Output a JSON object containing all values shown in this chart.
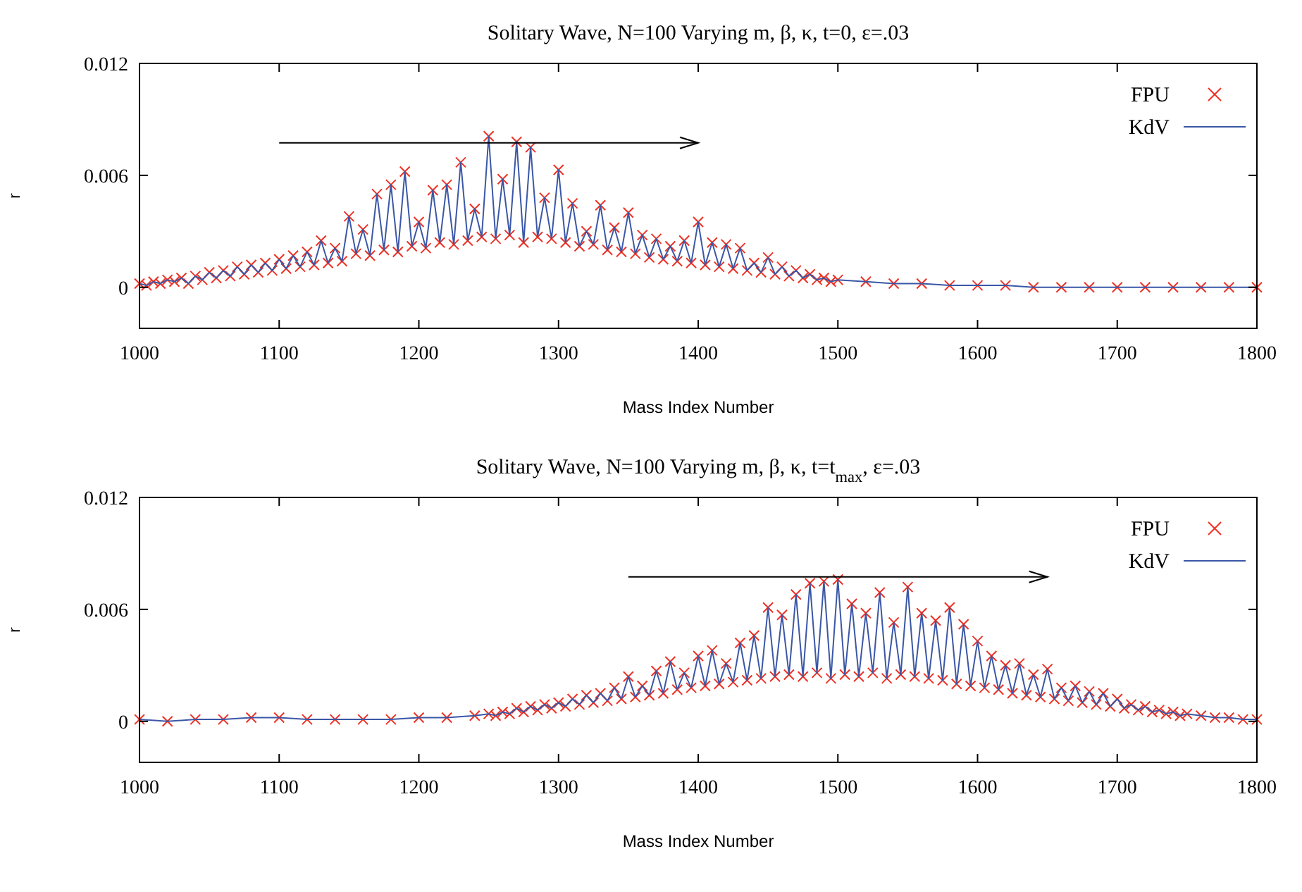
{
  "chart_data": [
    {
      "type": "line",
      "title": "Solitary Wave, N=100 Varying m, β, κ, t=0, ε=.03",
      "xlabel": "Mass Index Number",
      "ylabel": "r",
      "xlim": [
        1000,
        1800
      ],
      "xticks": [
        1000,
        1100,
        1200,
        1300,
        1400,
        1500,
        1600,
        1700,
        1800
      ],
      "ylim": [
        -0.0022,
        0.012
      ],
      "yticks": [
        0,
        0.006,
        0.012
      ],
      "grid": false,
      "legend": "top right",
      "x": [
        1000,
        1005,
        1010,
        1015,
        1020,
        1025,
        1030,
        1035,
        1040,
        1045,
        1050,
        1055,
        1060,
        1065,
        1070,
        1075,
        1080,
        1085,
        1090,
        1095,
        1100,
        1105,
        1110,
        1115,
        1120,
        1125,
        1130,
        1135,
        1140,
        1145,
        1150,
        1155,
        1160,
        1165,
        1170,
        1175,
        1180,
        1185,
        1190,
        1195,
        1200,
        1205,
        1210,
        1215,
        1220,
        1225,
        1230,
        1235,
        1240,
        1245,
        1250,
        1255,
        1260,
        1265,
        1270,
        1275,
        1280,
        1285,
        1290,
        1295,
        1300,
        1305,
        1310,
        1315,
        1320,
        1325,
        1330,
        1335,
        1340,
        1345,
        1350,
        1355,
        1360,
        1365,
        1370,
        1375,
        1380,
        1385,
        1390,
        1395,
        1400,
        1405,
        1410,
        1415,
        1420,
        1425,
        1430,
        1435,
        1440,
        1445,
        1450,
        1455,
        1460,
        1465,
        1470,
        1475,
        1480,
        1485,
        1490,
        1495,
        1500,
        1520,
        1540,
        1560,
        1580,
        1600,
        1620,
        1640,
        1660,
        1680,
        1700,
        1720,
        1740,
        1760,
        1780,
        1800
      ],
      "series": [
        {
          "name": "FPU",
          "type": "scatter",
          "marker": "cross",
          "color": "#ee3124",
          "values": [
            0.0002,
            0.0001,
            0.0003,
            0.0002,
            0.0004,
            0.0003,
            0.0005,
            0.0002,
            0.0006,
            0.0004,
            0.0008,
            0.0005,
            0.0009,
            0.0006,
            0.0011,
            0.0007,
            0.0012,
            0.0008,
            0.0013,
            0.0009,
            0.0015,
            0.001,
            0.0017,
            0.0011,
            0.0019,
            0.0012,
            0.0025,
            0.0013,
            0.0021,
            0.0014,
            0.0038,
            0.0018,
            0.0031,
            0.0017,
            0.005,
            0.002,
            0.0055,
            0.0019,
            0.0062,
            0.0022,
            0.0035,
            0.0021,
            0.0052,
            0.0024,
            0.0055,
            0.0023,
            0.0067,
            0.0025,
            0.0042,
            0.0027,
            0.0081,
            0.0026,
            0.0058,
            0.0028,
            0.0078,
            0.0024,
            0.0075,
            0.0027,
            0.0048,
            0.0026,
            0.0063,
            0.0024,
            0.0045,
            0.0022,
            0.003,
            0.0023,
            0.0044,
            0.002,
            0.0032,
            0.0019,
            0.004,
            0.0018,
            0.0028,
            0.0016,
            0.0026,
            0.0015,
            0.0022,
            0.0014,
            0.0025,
            0.0013,
            0.0035,
            0.0012,
            0.0024,
            0.0011,
            0.0023,
            0.001,
            0.0021,
            0.0009,
            0.0013,
            0.0008,
            0.0016,
            0.0007,
            0.0011,
            0.0006,
            0.0009,
            0.0005,
            0.0007,
            0.0004,
            0.0005,
            0.0003,
            0.0004,
            0.0003,
            0.0002,
            0.0002,
            0.0001,
            0.0001,
            0.0001,
            0,
            0,
            0,
            0,
            0,
            0,
            0,
            0,
            0
          ]
        },
        {
          "name": "KdV",
          "line_style": "solid",
          "color": "#3b57a6",
          "values": [
            0.0002,
            0.0001,
            0.0003,
            0.0002,
            0.0004,
            0.0003,
            0.0005,
            0.0002,
            0.0006,
            0.0004,
            0.0008,
            0.0005,
            0.0009,
            0.0006,
            0.0011,
            0.0007,
            0.0012,
            0.0008,
            0.0013,
            0.0009,
            0.0015,
            0.001,
            0.0017,
            0.0011,
            0.0019,
            0.0012,
            0.0025,
            0.0013,
            0.0021,
            0.0014,
            0.0038,
            0.0018,
            0.0031,
            0.0017,
            0.005,
            0.002,
            0.0055,
            0.0019,
            0.0062,
            0.0022,
            0.0035,
            0.0021,
            0.0052,
            0.0024,
            0.0055,
            0.0023,
            0.0067,
            0.0025,
            0.0042,
            0.0027,
            0.0081,
            0.0026,
            0.0058,
            0.0028,
            0.0078,
            0.0024,
            0.0075,
            0.0027,
            0.0048,
            0.0026,
            0.0063,
            0.0024,
            0.0045,
            0.0022,
            0.003,
            0.0023,
            0.0044,
            0.002,
            0.0032,
            0.0019,
            0.004,
            0.0018,
            0.0028,
            0.0016,
            0.0026,
            0.0015,
            0.0022,
            0.0014,
            0.0025,
            0.0013,
            0.0035,
            0.0012,
            0.0024,
            0.0011,
            0.0023,
            0.001,
            0.0021,
            0.0009,
            0.0013,
            0.0008,
            0.0016,
            0.0007,
            0.0011,
            0.0006,
            0.0009,
            0.0005,
            0.0007,
            0.0004,
            0.0005,
            0.0003,
            0.0004,
            0.0003,
            0.0002,
            0.0002,
            0.0001,
            0.0001,
            0.0001,
            0,
            0,
            0,
            0,
            0,
            0,
            0,
            0,
            0
          ]
        }
      ]
    },
    {
      "type": "line",
      "title": "Solitary Wave, N=100 Varying m, β, κ, t=t$_{max}$, ε=.03",
      "xlabel": "Mass Index Number",
      "ylabel": "r",
      "xlim": [
        1000,
        1800
      ],
      "xticks": [
        1000,
        1100,
        1200,
        1300,
        1400,
        1500,
        1600,
        1700,
        1800
      ],
      "ylim": [
        -0.0022,
        0.012
      ],
      "yticks": [
        0,
        0.006,
        0.012
      ],
      "grid": false,
      "legend": "top right",
      "x": [
        1000,
        1020,
        1040,
        1060,
        1080,
        1100,
        1120,
        1140,
        1160,
        1180,
        1200,
        1220,
        1240,
        1250,
        1255,
        1260,
        1265,
        1270,
        1275,
        1280,
        1285,
        1290,
        1295,
        1300,
        1305,
        1310,
        1315,
        1320,
        1325,
        1330,
        1335,
        1340,
        1345,
        1350,
        1355,
        1360,
        1365,
        1370,
        1375,
        1380,
        1385,
        1390,
        1395,
        1400,
        1405,
        1410,
        1415,
        1420,
        1425,
        1430,
        1435,
        1440,
        1445,
        1450,
        1455,
        1460,
        1465,
        1470,
        1475,
        1480,
        1485,
        1490,
        1495,
        1500,
        1505,
        1510,
        1515,
        1520,
        1525,
        1530,
        1535,
        1540,
        1545,
        1550,
        1555,
        1560,
        1565,
        1570,
        1575,
        1580,
        1585,
        1590,
        1595,
        1600,
        1605,
        1610,
        1615,
        1620,
        1625,
        1630,
        1635,
        1640,
        1645,
        1650,
        1655,
        1660,
        1665,
        1670,
        1675,
        1680,
        1685,
        1690,
        1695,
        1700,
        1705,
        1710,
        1715,
        1720,
        1725,
        1730,
        1735,
        1740,
        1745,
        1750,
        1760,
        1770,
        1780,
        1790,
        1800
      ],
      "series": [
        {
          "name": "FPU",
          "type": "scatter",
          "marker": "cross",
          "color": "#ee3124",
          "values": [
            0.0001,
            0,
            0.0001,
            0.0001,
            0.0002,
            0.0002,
            0.0001,
            0.0001,
            0.0001,
            0.0001,
            0.0002,
            0.0002,
            0.0003,
            0.0004,
            0.0003,
            0.0005,
            0.0004,
            0.0007,
            0.0005,
            0.0008,
            0.0006,
            0.0009,
            0.0007,
            0.001,
            0.0008,
            0.0012,
            0.0009,
            0.0014,
            0.001,
            0.0015,
            0.0011,
            0.0018,
            0.0012,
            0.0024,
            0.0013,
            0.0019,
            0.0014,
            0.0027,
            0.0015,
            0.0032,
            0.0017,
            0.0026,
            0.0018,
            0.0035,
            0.0019,
            0.0038,
            0.002,
            0.0031,
            0.0021,
            0.0042,
            0.0022,
            0.0046,
            0.0023,
            0.0061,
            0.0024,
            0.0057,
            0.0025,
            0.0068,
            0.0024,
            0.0074,
            0.0026,
            0.0075,
            0.0023,
            0.0076,
            0.0025,
            0.0063,
            0.0024,
            0.0058,
            0.0026,
            0.0069,
            0.0023,
            0.0053,
            0.0025,
            0.0072,
            0.0024,
            0.0058,
            0.0023,
            0.0054,
            0.0022,
            0.0061,
            0.002,
            0.0052,
            0.0019,
            0.0043,
            0.0018,
            0.0035,
            0.0017,
            0.003,
            0.0015,
            0.0031,
            0.0014,
            0.0025,
            0.0013,
            0.0028,
            0.0012,
            0.0018,
            0.0011,
            0.0019,
            0.001,
            0.0016,
            0.0009,
            0.0015,
            0.0008,
            0.0012,
            0.0007,
            0.0009,
            0.0006,
            0.0008,
            0.0005,
            0.0006,
            0.0004,
            0.0005,
            0.0003,
            0.0004,
            0.0003,
            0.0002,
            0.0002,
            0.0001,
            0.0001
          ]
        },
        {
          "name": "KdV",
          "line_style": "solid",
          "color": "#3b57a6",
          "values": [
            0.0001,
            0,
            0.0001,
            0.0001,
            0.0002,
            0.0002,
            0.0001,
            0.0001,
            0.0001,
            0.0001,
            0.0002,
            0.0002,
            0.0003,
            0.0004,
            0.0003,
            0.0005,
            0.0004,
            0.0007,
            0.0005,
            0.0008,
            0.0006,
            0.0009,
            0.0007,
            0.001,
            0.0008,
            0.0012,
            0.0009,
            0.0014,
            0.001,
            0.0015,
            0.0011,
            0.0018,
            0.0012,
            0.0024,
            0.0013,
            0.0019,
            0.0014,
            0.0027,
            0.0015,
            0.0032,
            0.0017,
            0.0026,
            0.0018,
            0.0035,
            0.0019,
            0.0038,
            0.002,
            0.0031,
            0.0021,
            0.0042,
            0.0022,
            0.0046,
            0.0023,
            0.0061,
            0.0024,
            0.0057,
            0.0025,
            0.0068,
            0.0024,
            0.0074,
            0.0026,
            0.0075,
            0.0023,
            0.0076,
            0.0025,
            0.0063,
            0.0024,
            0.0058,
            0.0026,
            0.0069,
            0.0023,
            0.0053,
            0.0025,
            0.0072,
            0.0024,
            0.0058,
            0.0023,
            0.0054,
            0.0022,
            0.0061,
            0.002,
            0.0052,
            0.0019,
            0.0043,
            0.0018,
            0.0035,
            0.0017,
            0.003,
            0.0015,
            0.0031,
            0.0014,
            0.0025,
            0.0013,
            0.0028,
            0.0012,
            0.0018,
            0.0011,
            0.0019,
            0.001,
            0.0016,
            0.0009,
            0.0015,
            0.0008,
            0.0012,
            0.0007,
            0.0009,
            0.0006,
            0.0008,
            0.0005,
            0.0006,
            0.0004,
            0.0005,
            0.0003,
            0.0004,
            0.0003,
            0.0002,
            0.0002,
            0.0001,
            0.0001
          ]
        }
      ]
    }
  ]
}
